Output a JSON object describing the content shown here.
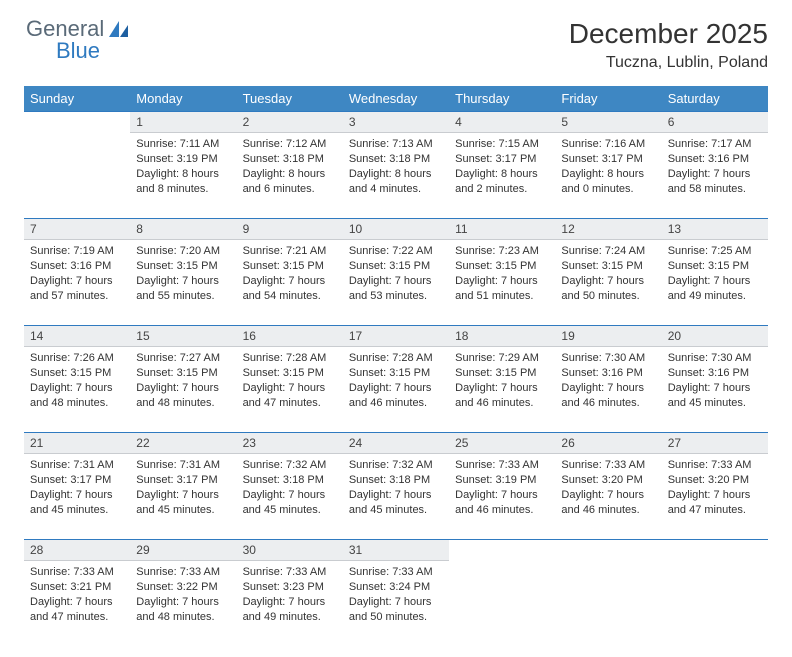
{
  "brand": {
    "word1": "General",
    "word2": "Blue"
  },
  "title": "December 2025",
  "location": "Tuczna, Lublin, Poland",
  "colors": {
    "header_bg": "#3e87c3",
    "header_text": "#ffffff",
    "daynum_bg": "#eceef0",
    "row_border": "#2f7ac0",
    "text": "#333333",
    "logo_gray": "#5a6a78",
    "logo_blue": "#2f7ac0"
  },
  "weekdays": [
    "Sunday",
    "Monday",
    "Tuesday",
    "Wednesday",
    "Thursday",
    "Friday",
    "Saturday"
  ],
  "weeks": [
    {
      "nums": [
        "",
        "1",
        "2",
        "3",
        "4",
        "5",
        "6"
      ],
      "cells": [
        null,
        {
          "sr": "Sunrise: 7:11 AM",
          "ss": "Sunset: 3:19 PM",
          "dl1": "Daylight: 8 hours",
          "dl2": "and 8 minutes."
        },
        {
          "sr": "Sunrise: 7:12 AM",
          "ss": "Sunset: 3:18 PM",
          "dl1": "Daylight: 8 hours",
          "dl2": "and 6 minutes."
        },
        {
          "sr": "Sunrise: 7:13 AM",
          "ss": "Sunset: 3:18 PM",
          "dl1": "Daylight: 8 hours",
          "dl2": "and 4 minutes."
        },
        {
          "sr": "Sunrise: 7:15 AM",
          "ss": "Sunset: 3:17 PM",
          "dl1": "Daylight: 8 hours",
          "dl2": "and 2 minutes."
        },
        {
          "sr": "Sunrise: 7:16 AM",
          "ss": "Sunset: 3:17 PM",
          "dl1": "Daylight: 8 hours",
          "dl2": "and 0 minutes."
        },
        {
          "sr": "Sunrise: 7:17 AM",
          "ss": "Sunset: 3:16 PM",
          "dl1": "Daylight: 7 hours",
          "dl2": "and 58 minutes."
        }
      ]
    },
    {
      "nums": [
        "7",
        "8",
        "9",
        "10",
        "11",
        "12",
        "13"
      ],
      "cells": [
        {
          "sr": "Sunrise: 7:19 AM",
          "ss": "Sunset: 3:16 PM",
          "dl1": "Daylight: 7 hours",
          "dl2": "and 57 minutes."
        },
        {
          "sr": "Sunrise: 7:20 AM",
          "ss": "Sunset: 3:15 PM",
          "dl1": "Daylight: 7 hours",
          "dl2": "and 55 minutes."
        },
        {
          "sr": "Sunrise: 7:21 AM",
          "ss": "Sunset: 3:15 PM",
          "dl1": "Daylight: 7 hours",
          "dl2": "and 54 minutes."
        },
        {
          "sr": "Sunrise: 7:22 AM",
          "ss": "Sunset: 3:15 PM",
          "dl1": "Daylight: 7 hours",
          "dl2": "and 53 minutes."
        },
        {
          "sr": "Sunrise: 7:23 AM",
          "ss": "Sunset: 3:15 PM",
          "dl1": "Daylight: 7 hours",
          "dl2": "and 51 minutes."
        },
        {
          "sr": "Sunrise: 7:24 AM",
          "ss": "Sunset: 3:15 PM",
          "dl1": "Daylight: 7 hours",
          "dl2": "and 50 minutes."
        },
        {
          "sr": "Sunrise: 7:25 AM",
          "ss": "Sunset: 3:15 PM",
          "dl1": "Daylight: 7 hours",
          "dl2": "and 49 minutes."
        }
      ]
    },
    {
      "nums": [
        "14",
        "15",
        "16",
        "17",
        "18",
        "19",
        "20"
      ],
      "cells": [
        {
          "sr": "Sunrise: 7:26 AM",
          "ss": "Sunset: 3:15 PM",
          "dl1": "Daylight: 7 hours",
          "dl2": "and 48 minutes."
        },
        {
          "sr": "Sunrise: 7:27 AM",
          "ss": "Sunset: 3:15 PM",
          "dl1": "Daylight: 7 hours",
          "dl2": "and 48 minutes."
        },
        {
          "sr": "Sunrise: 7:28 AM",
          "ss": "Sunset: 3:15 PM",
          "dl1": "Daylight: 7 hours",
          "dl2": "and 47 minutes."
        },
        {
          "sr": "Sunrise: 7:28 AM",
          "ss": "Sunset: 3:15 PM",
          "dl1": "Daylight: 7 hours",
          "dl2": "and 46 minutes."
        },
        {
          "sr": "Sunrise: 7:29 AM",
          "ss": "Sunset: 3:15 PM",
          "dl1": "Daylight: 7 hours",
          "dl2": "and 46 minutes."
        },
        {
          "sr": "Sunrise: 7:30 AM",
          "ss": "Sunset: 3:16 PM",
          "dl1": "Daylight: 7 hours",
          "dl2": "and 46 minutes."
        },
        {
          "sr": "Sunrise: 7:30 AM",
          "ss": "Sunset: 3:16 PM",
          "dl1": "Daylight: 7 hours",
          "dl2": "and 45 minutes."
        }
      ]
    },
    {
      "nums": [
        "21",
        "22",
        "23",
        "24",
        "25",
        "26",
        "27"
      ],
      "cells": [
        {
          "sr": "Sunrise: 7:31 AM",
          "ss": "Sunset: 3:17 PM",
          "dl1": "Daylight: 7 hours",
          "dl2": "and 45 minutes."
        },
        {
          "sr": "Sunrise: 7:31 AM",
          "ss": "Sunset: 3:17 PM",
          "dl1": "Daylight: 7 hours",
          "dl2": "and 45 minutes."
        },
        {
          "sr": "Sunrise: 7:32 AM",
          "ss": "Sunset: 3:18 PM",
          "dl1": "Daylight: 7 hours",
          "dl2": "and 45 minutes."
        },
        {
          "sr": "Sunrise: 7:32 AM",
          "ss": "Sunset: 3:18 PM",
          "dl1": "Daylight: 7 hours",
          "dl2": "and 45 minutes."
        },
        {
          "sr": "Sunrise: 7:33 AM",
          "ss": "Sunset: 3:19 PM",
          "dl1": "Daylight: 7 hours",
          "dl2": "and 46 minutes."
        },
        {
          "sr": "Sunrise: 7:33 AM",
          "ss": "Sunset: 3:20 PM",
          "dl1": "Daylight: 7 hours",
          "dl2": "and 46 minutes."
        },
        {
          "sr": "Sunrise: 7:33 AM",
          "ss": "Sunset: 3:20 PM",
          "dl1": "Daylight: 7 hours",
          "dl2": "and 47 minutes."
        }
      ]
    },
    {
      "nums": [
        "28",
        "29",
        "30",
        "31",
        "",
        "",
        ""
      ],
      "cells": [
        {
          "sr": "Sunrise: 7:33 AM",
          "ss": "Sunset: 3:21 PM",
          "dl1": "Daylight: 7 hours",
          "dl2": "and 47 minutes."
        },
        {
          "sr": "Sunrise: 7:33 AM",
          "ss": "Sunset: 3:22 PM",
          "dl1": "Daylight: 7 hours",
          "dl2": "and 48 minutes."
        },
        {
          "sr": "Sunrise: 7:33 AM",
          "ss": "Sunset: 3:23 PM",
          "dl1": "Daylight: 7 hours",
          "dl2": "and 49 minutes."
        },
        {
          "sr": "Sunrise: 7:33 AM",
          "ss": "Sunset: 3:24 PM",
          "dl1": "Daylight: 7 hours",
          "dl2": "and 50 minutes."
        },
        null,
        null,
        null
      ]
    }
  ]
}
